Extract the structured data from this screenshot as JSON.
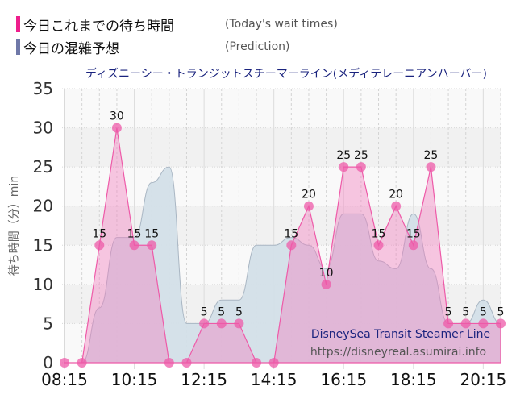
{
  "legend": {
    "items": [
      {
        "label_jp": "今日これまでの待ち時間",
        "label_en": "(Today's wait times)",
        "color": "#ee1e8c"
      },
      {
        "label_jp": "今日の混雑予想",
        "label_en": "(Prediction)",
        "color": "#6f78a8"
      }
    ]
  },
  "chart_data": {
    "type": "area",
    "title": "ディズニーシー・トランジットスチーマーライン(メディテレーニアンハーバー)",
    "xlabel": "",
    "ylabel": "待ち時間（分）min",
    "ylim": [
      0,
      35
    ],
    "yticks": [
      0,
      5,
      10,
      15,
      20,
      25,
      30,
      35
    ],
    "xtick_labels": [
      "08:15",
      "10:15",
      "12:15",
      "14:15",
      "16:15",
      "18:15",
      "20:15"
    ],
    "grid": true,
    "x": [
      "08:15",
      "08:45",
      "09:15",
      "09:45",
      "10:15",
      "10:45",
      "11:15",
      "11:45",
      "12:15",
      "12:45",
      "13:15",
      "13:45",
      "14:15",
      "14:45",
      "15:15",
      "15:45",
      "16:15",
      "16:45",
      "17:15",
      "17:45",
      "18:15",
      "18:45",
      "19:15",
      "19:45",
      "20:15",
      "20:45"
    ],
    "series": [
      {
        "name": "今日の混雑予想 (Prediction)",
        "color": "#6f78a8",
        "fill": "#d6e0e8",
        "values": [
          0,
          0,
          7,
          16,
          16,
          23,
          25,
          5,
          5,
          8,
          8,
          15,
          15,
          16,
          15,
          12,
          19,
          19,
          13,
          12,
          19,
          12,
          5,
          5,
          8,
          5
        ]
      },
      {
        "name": "今日これまでの待ち時間 (Today's wait times)",
        "color": "#ee1e8c",
        "fill": "#f5a3cf",
        "values": [
          0,
          0,
          15,
          30,
          15,
          15,
          0,
          0,
          5,
          5,
          5,
          0,
          0,
          15,
          20,
          10,
          25,
          25,
          15,
          20,
          15,
          25,
          5,
          5,
          5,
          5
        ]
      }
    ]
  },
  "watermark": {
    "line1": "DisneySea Transit Steamer Line",
    "line2": "https://disneyreal.asumirai.info"
  }
}
